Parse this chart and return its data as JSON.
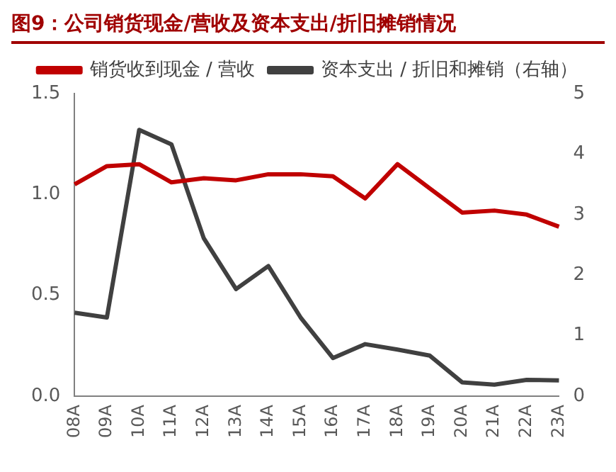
{
  "chart_data": {
    "type": "line",
    "title": "图9：公司销货现金/营收及资本支出/折旧摊销情况",
    "categories": [
      "08A",
      "09A",
      "10A",
      "11A",
      "12A",
      "13A",
      "14A",
      "15A",
      "16A",
      "17A",
      "18A",
      "19A",
      "20A",
      "21A",
      "22A",
      "23A"
    ],
    "series": [
      {
        "name": "销货收到现金 / 营收",
        "color": "#c00000",
        "values": [
          1.05,
          1.14,
          1.15,
          1.06,
          1.08,
          1.07,
          1.1,
          1.1,
          1.09,
          0.98,
          1.15,
          1.03,
          0.91,
          0.92,
          0.9,
          0.84
        ]
      },
      {
        "name": "资本支出 / 折旧和摊销（右轴）",
        "color": "#404040",
        "axis": "y2",
        "values": [
          1.38,
          1.3,
          4.4,
          4.16,
          2.61,
          1.77,
          2.15,
          1.3,
          0.63,
          0.86,
          0.77,
          0.67,
          0.23,
          0.19,
          0.27,
          0.26
        ]
      }
    ],
    "ylim": [
      0,
      1.5
    ],
    "yticks": [
      {
        "value": 0,
        "label": "0.0"
      },
      0.5,
      {
        "value": 1,
        "label": "1.0"
      },
      1.5
    ],
    "y2lim": [
      0,
      5
    ],
    "y2ticks": [
      0,
      1,
      2,
      3,
      4,
      5
    ],
    "grid": false,
    "legend": "top",
    "marker": "none",
    "line_style": "solid"
  }
}
